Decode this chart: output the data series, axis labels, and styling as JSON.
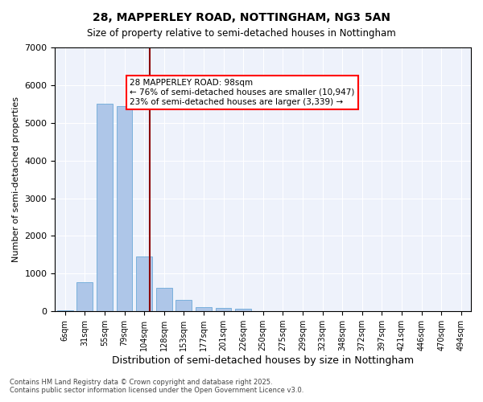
{
  "title1": "28, MAPPERLEY ROAD, NOTTINGHAM, NG3 5AN",
  "title2": "Size of property relative to semi-detached houses in Nottingham",
  "xlabel": "Distribution of semi-detached houses by size in Nottingham",
  "ylabel": "Number of semi-detached properties",
  "bar_color": "#aec6e8",
  "bar_edge_color": "#5a9fd4",
  "vline_color": "#8b0000",
  "vline_x": 4,
  "background_color": "#eef2fb",
  "categories": [
    "6sqm",
    "31sqm",
    "55sqm",
    "79sqm",
    "104sqm",
    "128sqm",
    "153sqm",
    "177sqm",
    "201sqm",
    "226sqm",
    "250sqm",
    "275sqm",
    "299sqm",
    "323sqm",
    "348sqm",
    "372sqm",
    "397sqm",
    "421sqm",
    "446sqm",
    "470sqm",
    "494sqm"
  ],
  "values": [
    20,
    780,
    5500,
    5450,
    1450,
    620,
    300,
    120,
    80,
    65,
    0,
    0,
    0,
    0,
    0,
    0,
    0,
    0,
    0,
    0,
    0
  ],
  "ylim": [
    0,
    7000
  ],
  "annotation_text": "28 MAPPERLEY ROAD: 98sqm\n← 76% of semi-detached houses are smaller (10,947)\n23% of semi-detached houses are larger (3,339) →",
  "footer1": "Contains HM Land Registry data © Crown copyright and database right 2025.",
  "footer2": "Contains public sector information licensed under the Open Government Licence v3.0."
}
